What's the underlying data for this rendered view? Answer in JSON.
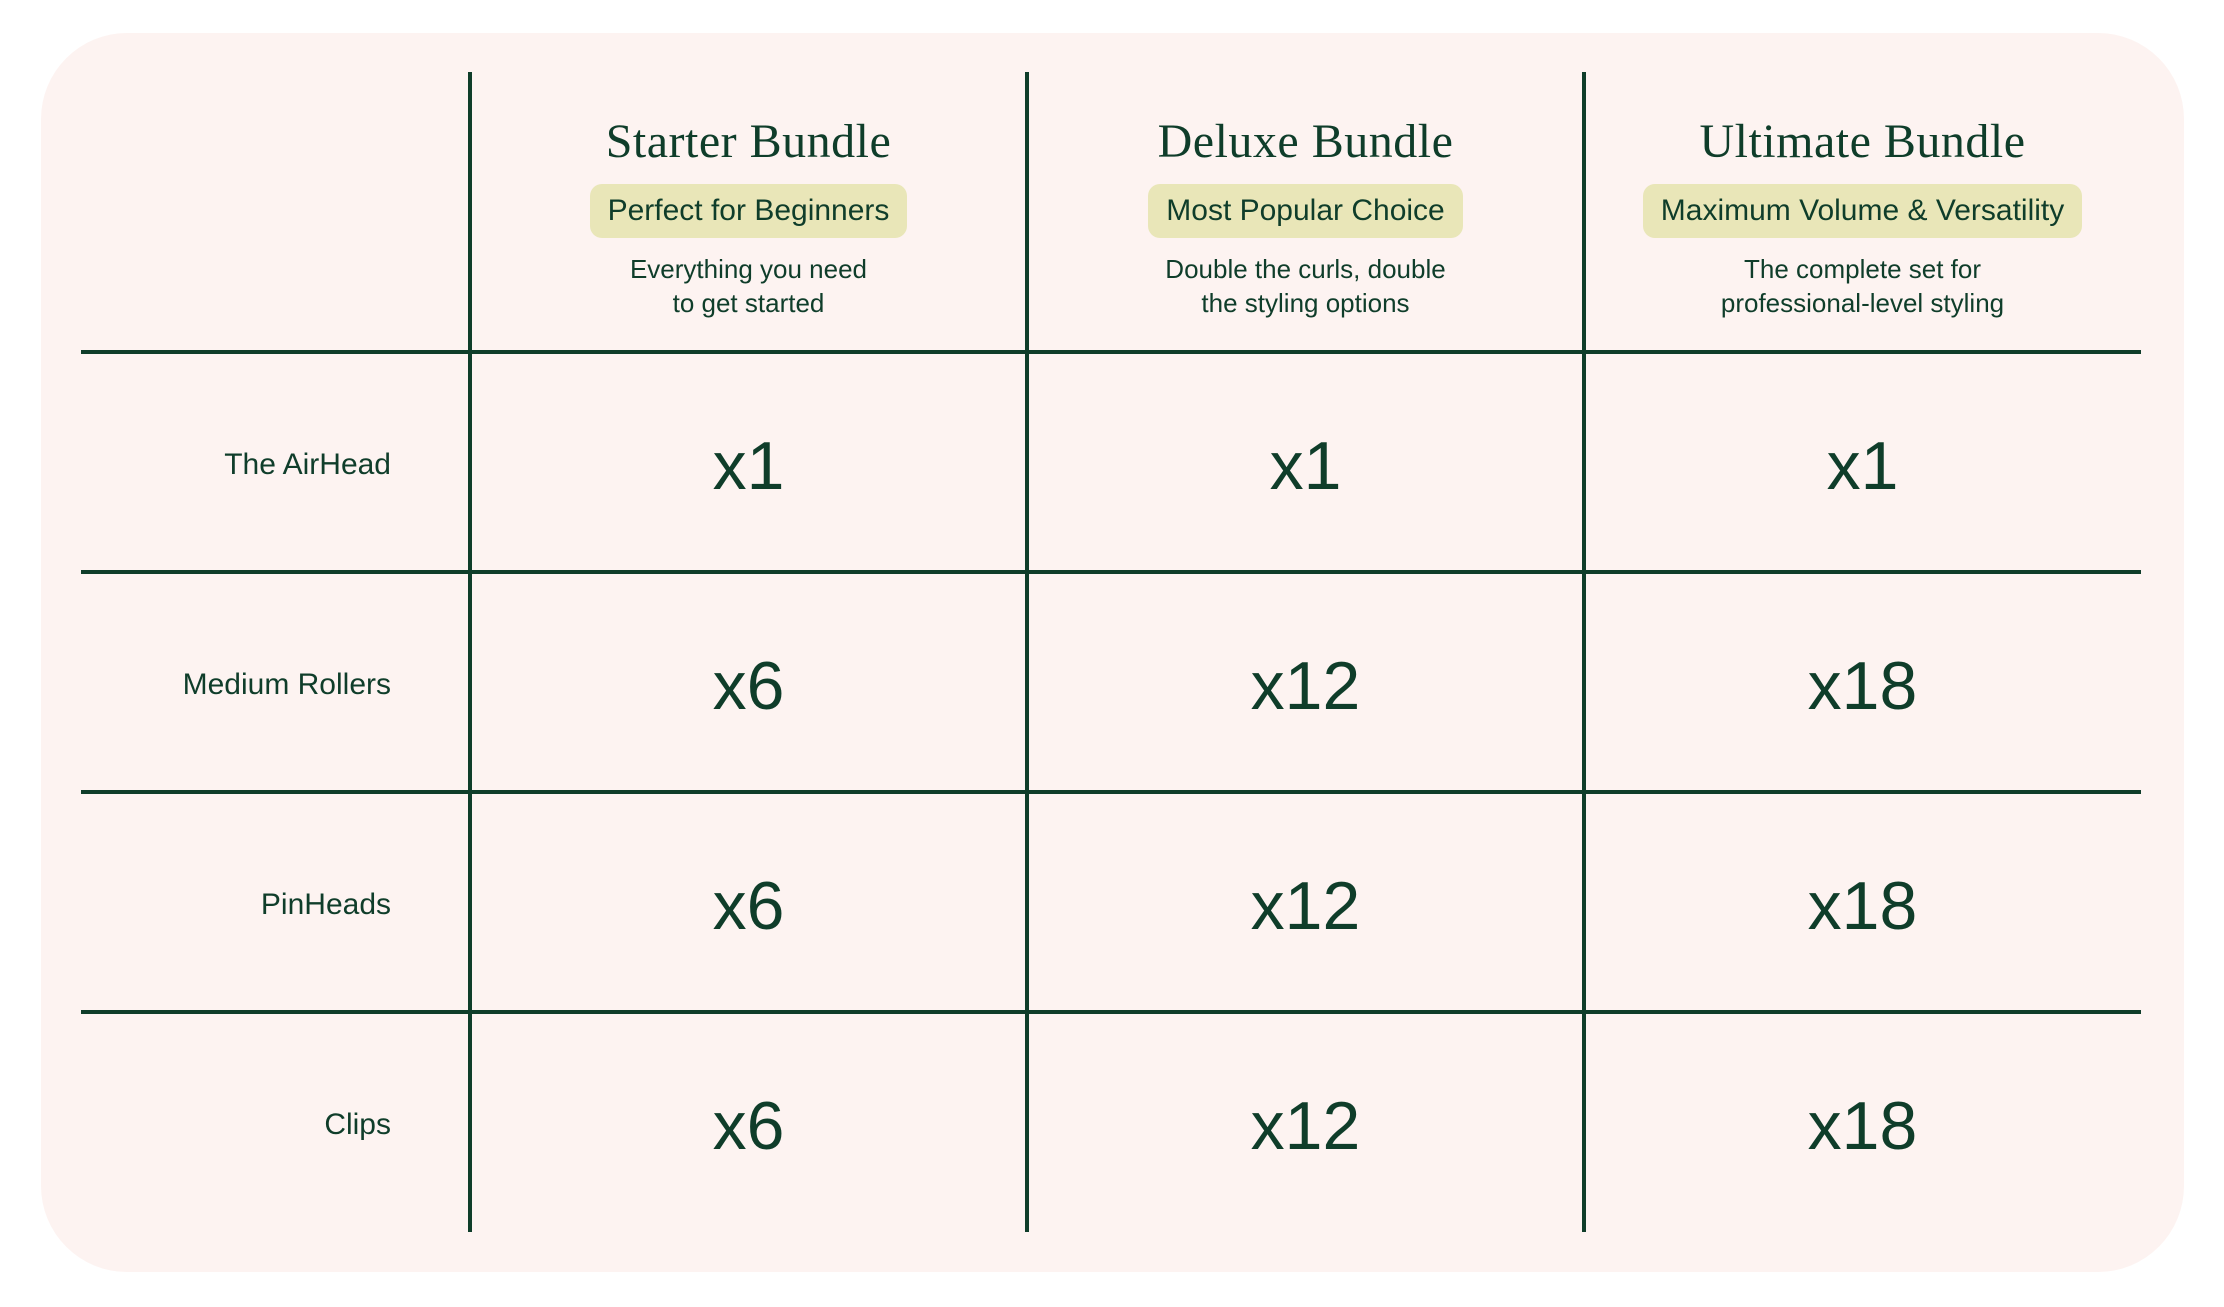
{
  "colors": {
    "background": "#fdf3f1",
    "text": "#0f3d2a",
    "badge": "#e9e6b8"
  },
  "bundles": [
    {
      "title": "Starter Bundle",
      "badge": "Perfect for Beginners",
      "desc1": "Everything you need",
      "desc2": "to get started"
    },
    {
      "title": "Deluxe Bundle",
      "badge": "Most Popular Choice",
      "desc1": "Double the curls, double",
      "desc2": "the styling options"
    },
    {
      "title": "Ultimate Bundle",
      "badge": "Maximum Volume & Versatility",
      "desc1": "The complete set for",
      "desc2": "professional-level styling"
    }
  ],
  "rows": [
    {
      "label": "The AirHead",
      "values": [
        "x1",
        "x1",
        "x1"
      ]
    },
    {
      "label": "Medium Rollers",
      "values": [
        "x6",
        "x12",
        "x18"
      ]
    },
    {
      "label": "PinHeads",
      "values": [
        "x6",
        "x12",
        "x18"
      ]
    },
    {
      "label": "Clips",
      "values": [
        "x6",
        "x12",
        "x18"
      ]
    }
  ]
}
